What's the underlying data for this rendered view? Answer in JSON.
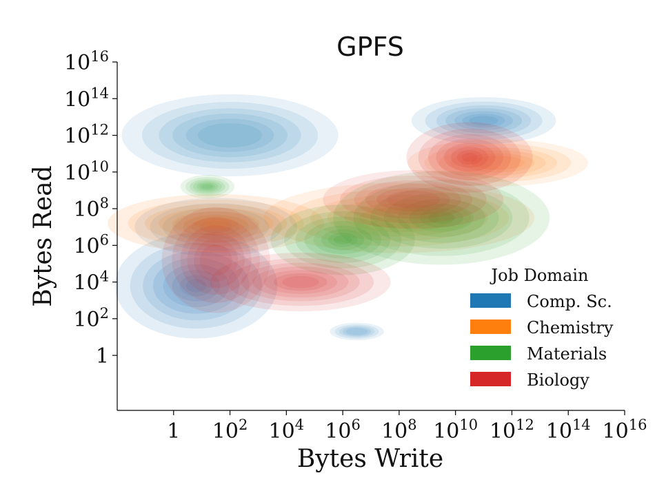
{
  "chart_data": {
    "type": "kde-contour",
    "title": "GPFS",
    "xlabel": "Bytes Write",
    "ylabel": "Bytes Read",
    "xscale": "log",
    "yscale": "log",
    "xlim": [
      0.01,
      1e+16
    ],
    "ylim": [
      0.001,
      1e+16
    ],
    "x_ticks": [
      {
        "value": 1,
        "label": "1",
        "mant": "1",
        "exp": ""
      },
      {
        "value": 100.0,
        "label": "10^2",
        "mant": "10",
        "exp": "2"
      },
      {
        "value": 10000.0,
        "label": "10^4",
        "mant": "10",
        "exp": "4"
      },
      {
        "value": 1000000.0,
        "label": "10^6",
        "mant": "10",
        "exp": "6"
      },
      {
        "value": 100000000.0,
        "label": "10^8",
        "mant": "10",
        "exp": "8"
      },
      {
        "value": 10000000000.0,
        "label": "10^10",
        "mant": "10",
        "exp": "10"
      },
      {
        "value": 1000000000000.0,
        "label": "10^12",
        "mant": "10",
        "exp": "12"
      },
      {
        "value": 100000000000000.0,
        "label": "10^14",
        "mant": "10",
        "exp": "14"
      },
      {
        "value": 1e+16,
        "label": "10^16",
        "mant": "10",
        "exp": "16"
      }
    ],
    "y_ticks": [
      {
        "value": 1,
        "label": "1",
        "mant": "1",
        "exp": ""
      },
      {
        "value": 100.0,
        "label": "10^2",
        "mant": "10",
        "exp": "2"
      },
      {
        "value": 10000.0,
        "label": "10^4",
        "mant": "10",
        "exp": "4"
      },
      {
        "value": 1000000.0,
        "label": "10^6",
        "mant": "10",
        "exp": "6"
      },
      {
        "value": 100000000.0,
        "label": "10^8",
        "mant": "10",
        "exp": "8"
      },
      {
        "value": 10000000000.0,
        "label": "10^10",
        "mant": "10",
        "exp": "10"
      },
      {
        "value": 1000000000000.0,
        "label": "10^12",
        "mant": "10",
        "exp": "12"
      },
      {
        "value": 100000000000000.0,
        "label": "10^14",
        "mant": "10",
        "exp": "14"
      },
      {
        "value": 1e+16,
        "label": "10^16",
        "mant": "10",
        "exp": "16"
      }
    ],
    "legend": {
      "title": "Job Domain",
      "position": "lower-right"
    },
    "series": [
      {
        "name": "Comp. Sc.",
        "color": "#1f77b4",
        "modes": [
          {
            "x_log": 0.8,
            "y_log": 3.8,
            "sx": 0.9,
            "sy": 0.9,
            "weight": 1.0
          },
          {
            "x_log": 1.5,
            "y_log": 7.0,
            "sx": 0.9,
            "sy": 0.5,
            "weight": 0.8
          },
          {
            "x_log": 2.0,
            "y_log": 12.0,
            "sx": 1.2,
            "sy": 0.7,
            "weight": 0.5
          },
          {
            "x_log": 11.0,
            "y_log": 12.8,
            "sx": 0.8,
            "sy": 0.4,
            "weight": 0.7
          },
          {
            "x_log": 6.5,
            "y_log": 1.3,
            "sx": 0.3,
            "sy": 0.15,
            "weight": 0.3
          }
        ]
      },
      {
        "name": "Chemistry",
        "color": "#ff7f0e",
        "modes": [
          {
            "x_log": 1.5,
            "y_log": 7.2,
            "sx": 1.2,
            "sy": 0.5,
            "weight": 1.0
          },
          {
            "x_log": 8.0,
            "y_log": 7.5,
            "sx": 1.5,
            "sy": 0.6,
            "weight": 0.5
          },
          {
            "x_log": 11.5,
            "y_log": 10.5,
            "sx": 1.0,
            "sy": 0.4,
            "weight": 0.4
          }
        ]
      },
      {
        "name": "Materials",
        "color": "#2ca02c",
        "modes": [
          {
            "x_log": 6.0,
            "y_log": 6.3,
            "sx": 0.8,
            "sy": 0.6,
            "weight": 1.0
          },
          {
            "x_log": 9.5,
            "y_log": 7.5,
            "sx": 1.2,
            "sy": 0.8,
            "weight": 0.9
          },
          {
            "x_log": 1.2,
            "y_log": 9.2,
            "sx": 0.3,
            "sy": 0.2,
            "weight": 0.6
          }
        ]
      },
      {
        "name": "Biology",
        "color": "#d62728",
        "modes": [
          {
            "x_log": 10.5,
            "y_log": 10.8,
            "sx": 0.7,
            "sy": 0.6,
            "weight": 1.0
          },
          {
            "x_log": 4.5,
            "y_log": 4.0,
            "sx": 1.0,
            "sy": 0.5,
            "weight": 0.6
          },
          {
            "x_log": 1.5,
            "y_log": 5.2,
            "sx": 0.6,
            "sy": 0.9,
            "weight": 0.5
          },
          {
            "x_log": 8.5,
            "y_log": 8.5,
            "sx": 1.0,
            "sy": 0.5,
            "weight": 0.4
          }
        ]
      }
    ]
  }
}
